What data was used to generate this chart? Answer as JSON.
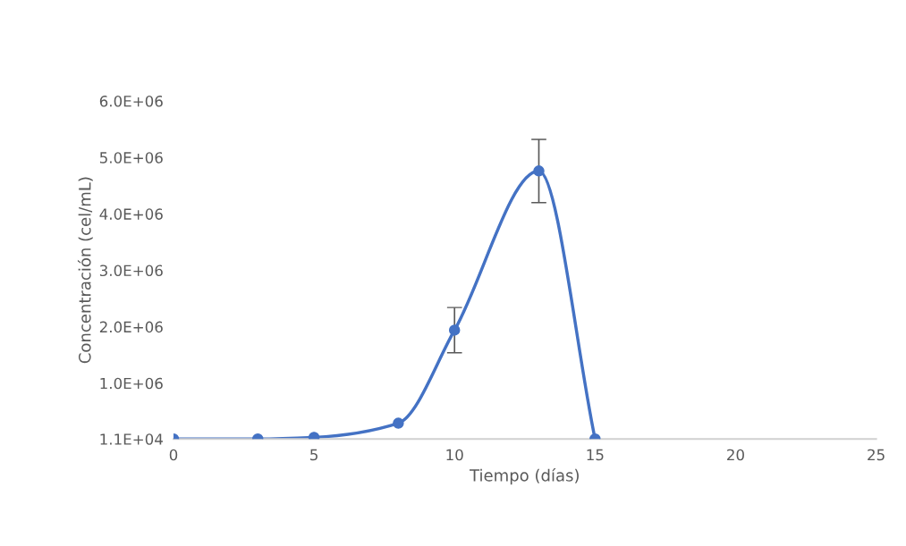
{
  "chart_data": {
    "type": "line",
    "xlabel": "Tiempo (días)",
    "ylabel": "Concentración (cel/mL)",
    "x": [
      0,
      3,
      5,
      8,
      10,
      13,
      15
    ],
    "series": [
      {
        "color": "#4472c4",
        "values": [
          11000,
          11000,
          40000,
          290000,
          1940000,
          4760000,
          11000
        ],
        "errors": [
          null,
          null,
          null,
          null,
          400000,
          560000,
          null
        ]
      }
    ],
    "xlim": [
      0,
      25
    ],
    "xticks": [
      0,
      5,
      10,
      15,
      20,
      25
    ],
    "ylim": [
      11000,
      6000000
    ],
    "yticks": [
      {
        "value": 11000,
        "label": "1.1E+04"
      },
      {
        "value": 1000000,
        "label": "1.0E+06"
      },
      {
        "value": 2000000,
        "label": "2.0E+06"
      },
      {
        "value": 3000000,
        "label": "3.0E+06"
      },
      {
        "value": 4000000,
        "label": "4.0E+06"
      },
      {
        "value": 5000000,
        "label": "5.0E+06"
      },
      {
        "value": 6000000,
        "label": "6.0E+06"
      }
    ],
    "marker": "circle",
    "line_style": "solid",
    "grid": false
  }
}
